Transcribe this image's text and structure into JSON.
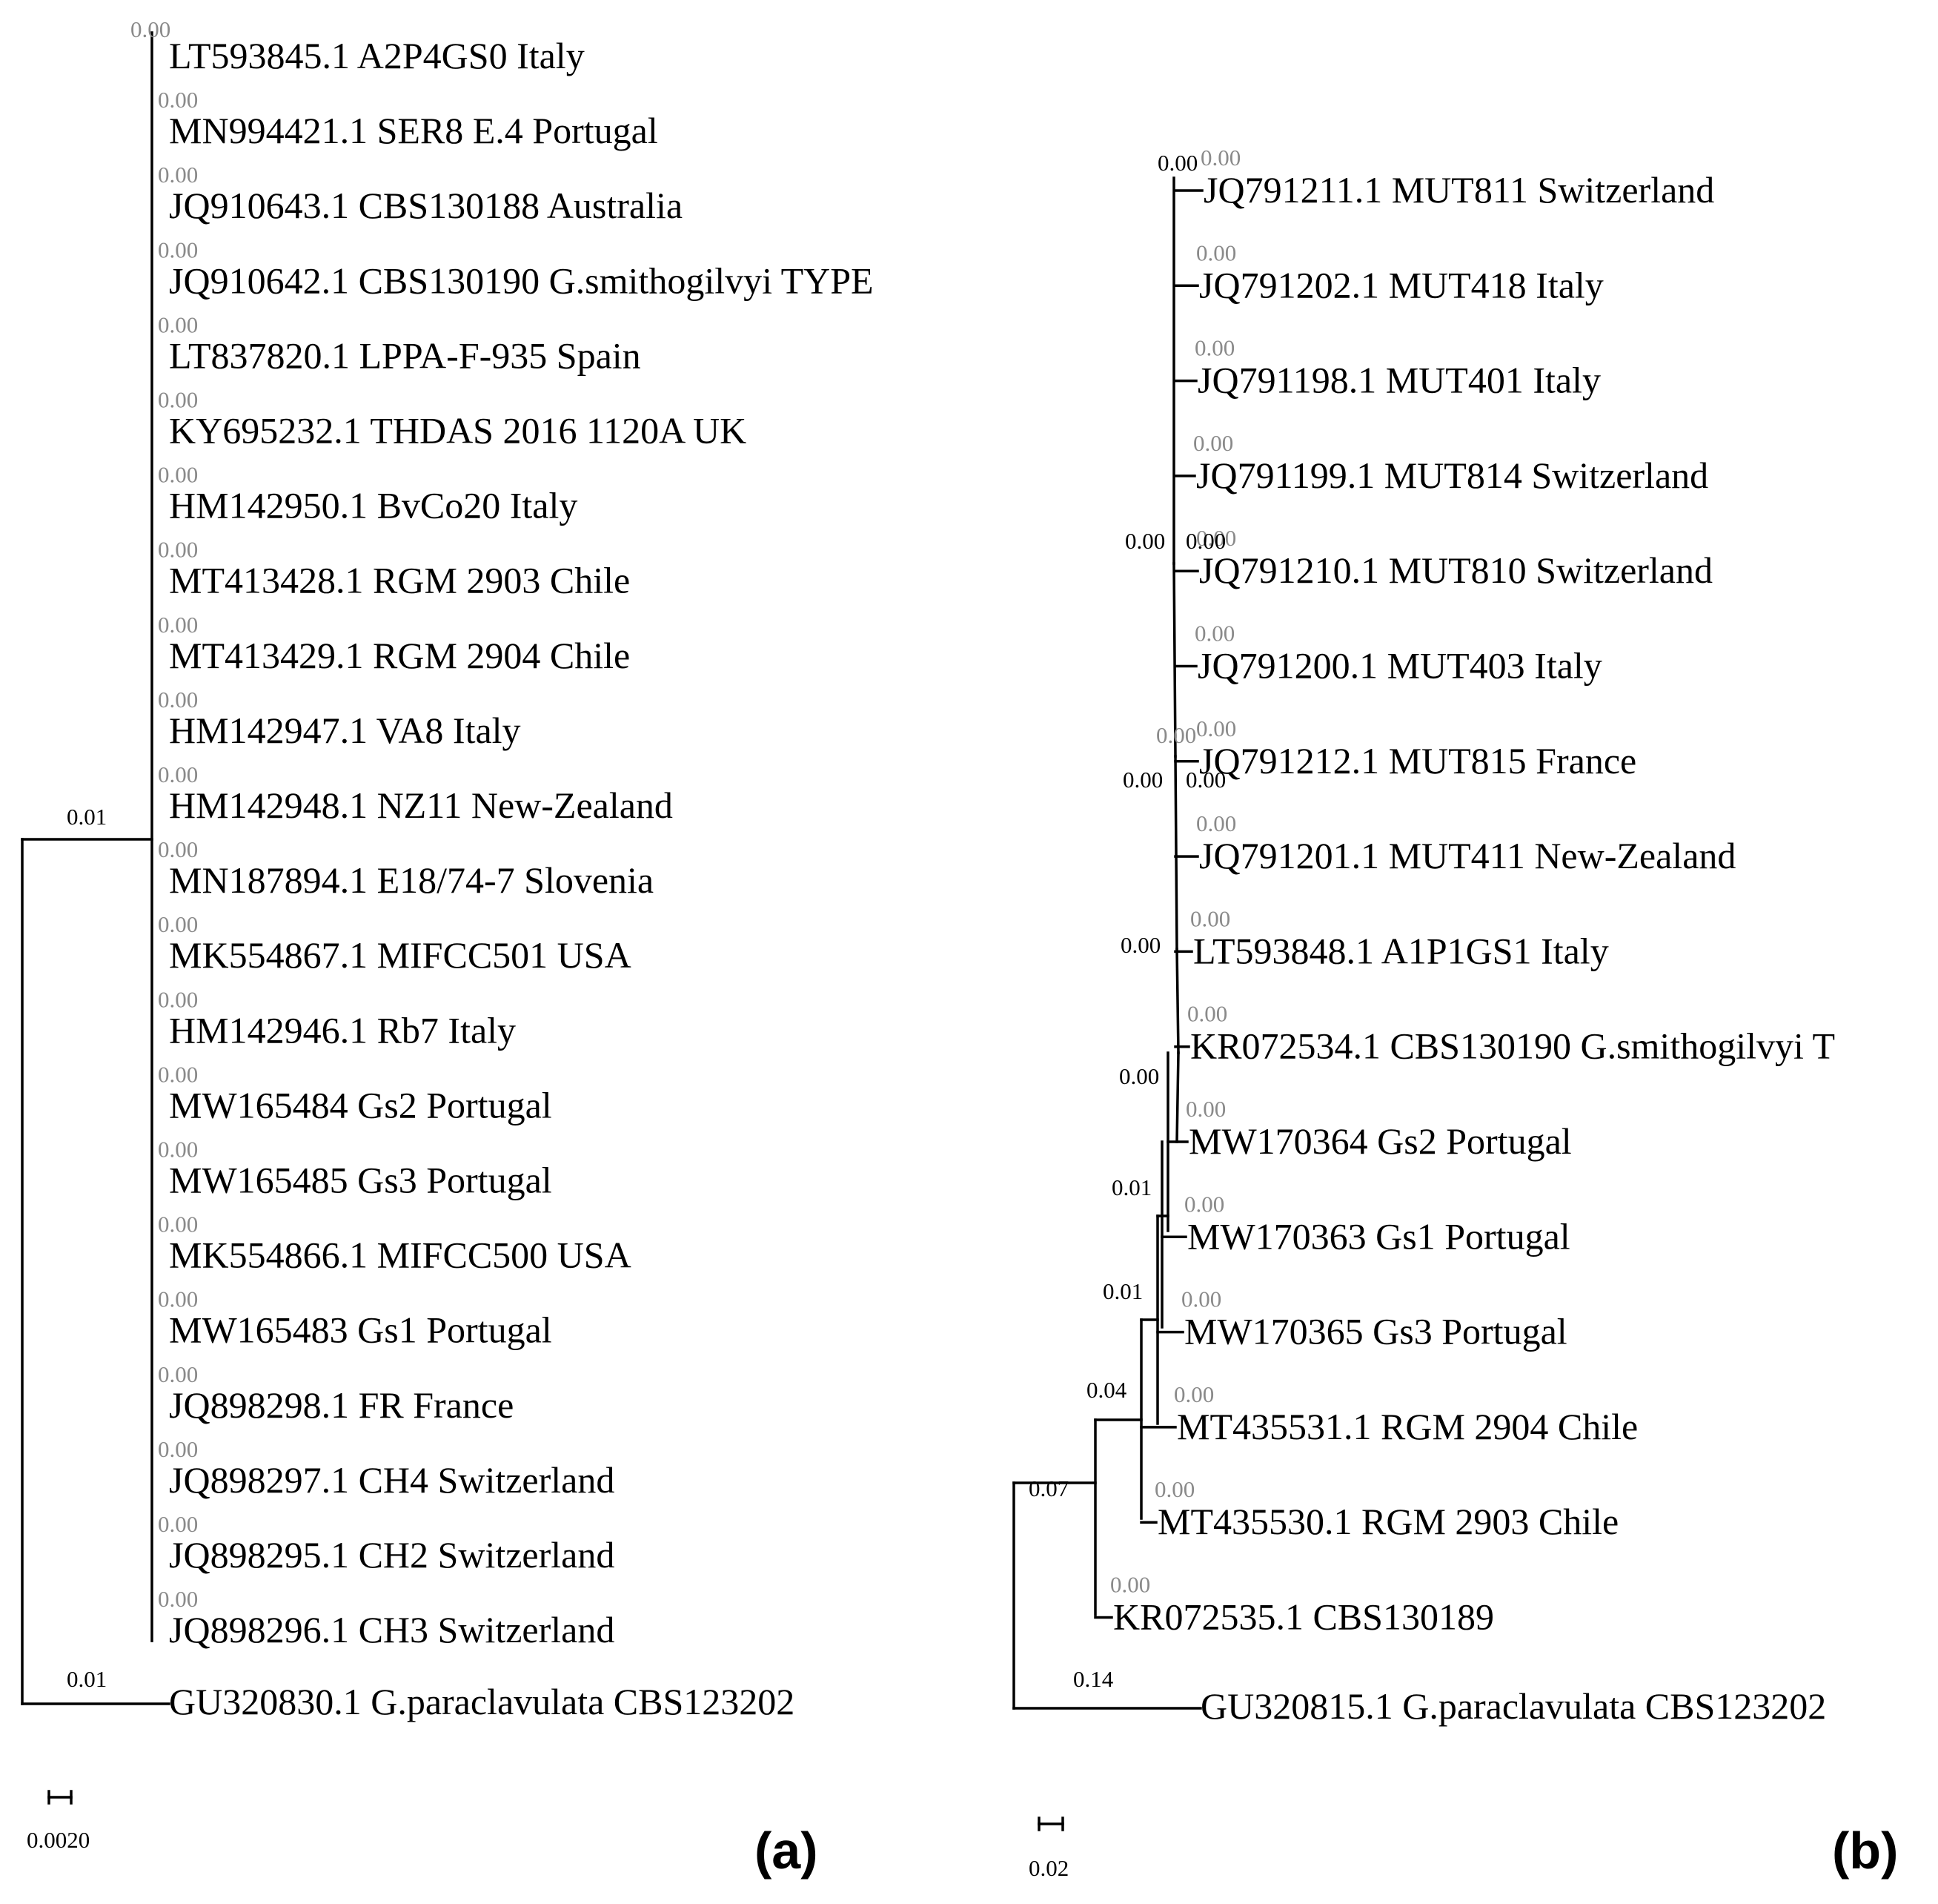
{
  "panel_a": {
    "label": "(a)",
    "root_branch_label": "0.01",
    "crown_branch_label": "0.00",
    "leaves": [
      {
        "name": "LT593845.1 A2P4GS0 Italy",
        "branch_length": "0.00"
      },
      {
        "name": "MN994421.1 SER8 E.4 Portugal",
        "branch_length": "0.00"
      },
      {
        "name": "JQ910643.1 CBS130188 Australia",
        "branch_length": "0.00"
      },
      {
        "name": "JQ910642.1 CBS130190 G.smithogilvyi TYPE",
        "branch_length": "0.00"
      },
      {
        "name": "LT837820.1 LPPA-F-935 Spain",
        "branch_length": "0.00"
      },
      {
        "name": "KY695232.1 THDAS 2016 1120A UK",
        "branch_length": "0.00"
      },
      {
        "name": "HM142950.1 BvCo20 Italy",
        "branch_length": "0.00"
      },
      {
        "name": "MT413428.1 RGM 2903 Chile",
        "branch_length": "0.00"
      },
      {
        "name": "MT413429.1 RGM 2904 Chile",
        "branch_length": "0.00"
      },
      {
        "name": "HM142947.1 VA8 Italy",
        "branch_length": "0.00"
      },
      {
        "name": "HM142948.1 NZ11 New-Zealand",
        "branch_length": "0.00"
      },
      {
        "name": "MN187894.1 E18/74-7 Slovenia",
        "branch_length": "0.00"
      },
      {
        "name": "MK554867.1 MIFCC501 USA",
        "branch_length": "0.00"
      },
      {
        "name": "HM142946.1 Rb7 Italy",
        "branch_length": "0.00"
      },
      {
        "name": "MW165484 Gs2 Portugal",
        "branch_length": "0.00"
      },
      {
        "name": "MW165485 Gs3 Portugal",
        "branch_length": "0.00"
      },
      {
        "name": "MK554866.1 MIFCC500 USA",
        "branch_length": "0.00"
      },
      {
        "name": "MW165483 Gs1 Portugal",
        "branch_length": "0.00"
      },
      {
        "name": "JQ898298.1 FR France",
        "branch_length": "0.00"
      },
      {
        "name": "JQ898297.1 CH4 Switzerland",
        "branch_length": "0.00"
      },
      {
        "name": "JQ898295.1 CH2 Switzerland",
        "branch_length": "0.00"
      },
      {
        "name": "JQ898296.1 CH3 Switzerland",
        "branch_length": "0.00"
      }
    ],
    "outgroup": {
      "name": "GU320830.1 G.paraclavulata CBS123202",
      "branch_length": "0.01"
    },
    "scale_bar": "0.0020"
  },
  "panel_b": {
    "label": "(b)",
    "leaves": [
      {
        "name": "JQ791211.1 MUT811 Switzerland",
        "branch_length": "0.00"
      },
      {
        "name": "JQ791202.1 MUT418 Italy",
        "branch_length": "0.00"
      },
      {
        "name": "JQ791198.1 MUT401 Italy",
        "branch_length": "0.00"
      },
      {
        "name": "JQ791199.1 MUT814 Switzerland",
        "branch_length": "0.00"
      },
      {
        "name": "JQ791210.1 MUT810 Switzerland",
        "branch_length": "0.00"
      },
      {
        "name": "JQ791200.1 MUT403 Italy",
        "branch_length": "0.00"
      },
      {
        "name": "JQ791212.1 MUT815 France",
        "branch_length": "0.00"
      },
      {
        "name": "JQ791201.1 MUT411 New-Zealand",
        "branch_length": "0.00"
      },
      {
        "name": "LT593848.1 A1P1GS1 Italy",
        "branch_length": "0.00"
      },
      {
        "name": "KR072534.1 CBS130190 G.smithogilvyi T",
        "branch_length": "0.00"
      },
      {
        "name": "MW170364 Gs2 Portugal",
        "branch_length": "0.00"
      },
      {
        "name": "MW170363 Gs1 Portugal",
        "branch_length": "0.00"
      },
      {
        "name": "MW170365 Gs3 Portugal",
        "branch_length": "0.00"
      },
      {
        "name": "MT435531.1 RGM 2904 Chile",
        "branch_length": "0.00"
      },
      {
        "name": "MT435530.1 RGM 2903 Chile",
        "branch_length": "0.00"
      },
      {
        "name": "KR072535.1 CBS130189",
        "branch_length": "0.00"
      }
    ],
    "outgroup": {
      "name": "GU320815.1 G.paraclavulata CBS123202",
      "branch_length": "0.14"
    },
    "internal_labels": [
      {
        "label": "0.00",
        "color": "#000000"
      },
      {
        "label": "0.00",
        "color": "#000000"
      },
      {
        "label": "0.00",
        "color": "#000000"
      },
      {
        "label": "0.00",
        "color": "#000000"
      },
      {
        "label": "0.00",
        "color": "#000000"
      },
      {
        "label": "0.00",
        "color": "#8a8a8a"
      },
      {
        "label": "0.00",
        "color": "#000000"
      },
      {
        "label": "0.00",
        "color": "#000000"
      },
      {
        "label": "0.01",
        "color": "#000000"
      },
      {
        "label": "0.01",
        "color": "#000000"
      },
      {
        "label": "0.04",
        "color": "#000000"
      },
      {
        "label": "0.07",
        "color": "#000000"
      }
    ],
    "scale_bar": "0.02"
  },
  "colors": {
    "branch": "#000000",
    "leaf_branch_label": "#8a8a8a",
    "internal_branch_label": "#000000",
    "background": "#ffffff"
  }
}
